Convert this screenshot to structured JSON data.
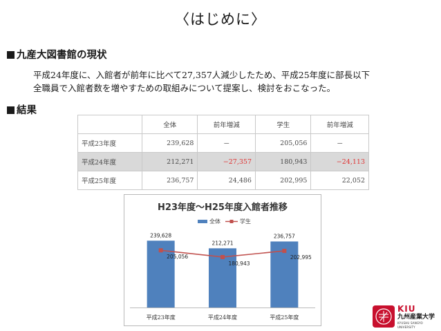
{
  "page": {
    "title": "〈はじめに〉",
    "section1_heading": "九産大図書館の現状",
    "paragraph_line1": "平成24年度に、入館者が前年に比べて27,357人減少したため、平成25年度に部長以下",
    "paragraph_line2": "全職員で入館者数を増やすための取組みについて提案し、検討をおこなった。",
    "section2_heading": "結果"
  },
  "table": {
    "headers": [
      "",
      "全体",
      "前年増減",
      "学生",
      "前年増減"
    ],
    "rows": [
      {
        "label": "平成23年度",
        "total": "239,628",
        "total_diff": "－",
        "student": "205,056",
        "student_diff": "－"
      },
      {
        "label": "平成24年度",
        "total": "212,271",
        "total_diff": "−27,357",
        "student": "180,943",
        "student_diff": "−24,113"
      },
      {
        "label": "平成25年度",
        "total": "236,757",
        "total_diff": "24,486",
        "student": "202,995",
        "student_diff": "22,052"
      }
    ],
    "negative_color": "#e03030",
    "shaded_row_color": "#d9d9d9"
  },
  "chart_data": {
    "type": "bar",
    "title": "H23年度～H25年度入館者推移",
    "categories": [
      "平成23年度",
      "平成24年度",
      "平成25年度"
    ],
    "series": [
      {
        "name": "全体",
        "kind": "bar",
        "values": [
          239628,
          212271,
          236757
        ],
        "labels": [
          "239,628",
          "212,271",
          "236,757"
        ],
        "color": "#4f81bd"
      },
      {
        "name": "学生",
        "kind": "line",
        "values": [
          205056,
          180943,
          202995
        ],
        "labels": [
          "205,056",
          "180,943",
          "202,995"
        ],
        "color": "#c0504d"
      }
    ],
    "ylim": [
      0,
      280000
    ],
    "legend": "top",
    "grid": false
  },
  "logo": {
    "abbr": "KIU",
    "name_jp": "九州産業大学",
    "name_en": "KYUSHU SANGYO UNIVERSITY",
    "brand_color": "#c8102e"
  }
}
